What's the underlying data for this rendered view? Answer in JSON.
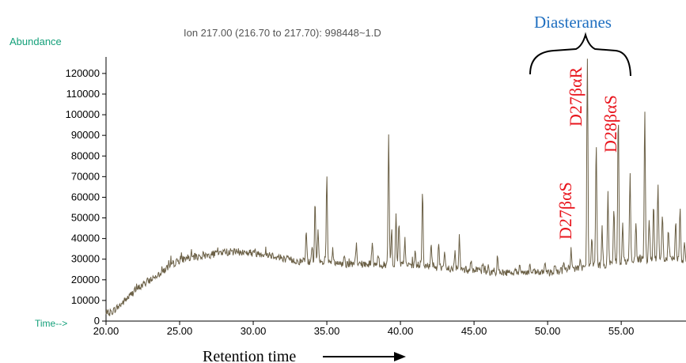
{
  "colors": {
    "trace": "#6b6046",
    "axis": "#000000",
    "teal": "#14a07a",
    "peak_label": "#e8141c",
    "group_label": "#1f6fc0",
    "text": "#000000"
  },
  "chart_data": {
    "type": "line",
    "title": "Ion 217.00 (216.70 to 217.70): 998448~1.D",
    "ylabel": "Abundance",
    "xlabel_prefix": "Time-->",
    "xlabel_bottom": "Retention time",
    "xlim": [
      20.0,
      59.4
    ],
    "ylim": [
      0,
      128000
    ],
    "x_ticks": [
      "20.00",
      "25.00",
      "30.00",
      "35.00",
      "40.00",
      "45.00",
      "50.00",
      "55.00"
    ],
    "x_tick_values": [
      20,
      25,
      30,
      35,
      40,
      45,
      50,
      55
    ],
    "y_ticks": [
      "0",
      "10000",
      "20000",
      "30000",
      "40000",
      "50000",
      "60000",
      "70000",
      "80000",
      "90000",
      "100000",
      "110000",
      "120000"
    ],
    "y_tick_values": [
      0,
      10000,
      20000,
      30000,
      40000,
      50000,
      60000,
      70000,
      80000,
      90000,
      100000,
      110000,
      120000
    ],
    "grid": false,
    "baseline": [
      [
        20.0,
        3000
      ],
      [
        20.5,
        5000
      ],
      [
        21.0,
        8000
      ],
      [
        21.5,
        11500
      ],
      [
        22.0,
        15000
      ],
      [
        22.5,
        17500
      ],
      [
        23.0,
        20000
      ],
      [
        23.5,
        22500
      ],
      [
        24.0,
        25000
      ],
      [
        24.5,
        27500
      ],
      [
        25.0,
        29500
      ],
      [
        25.5,
        30500
      ],
      [
        26.0,
        31000
      ],
      [
        27.0,
        32000
      ],
      [
        28.0,
        33500
      ],
      [
        29.0,
        33500
      ],
      [
        30.0,
        33000
      ],
      [
        31.0,
        32500
      ],
      [
        32.0,
        30500
      ],
      [
        33.0,
        29000
      ],
      [
        34.0,
        28500
      ],
      [
        35.0,
        28000
      ],
      [
        36.0,
        27500
      ],
      [
        37.0,
        27500
      ],
      [
        38.0,
        27500
      ],
      [
        39.0,
        27000
      ],
      [
        40.0,
        27000
      ],
      [
        41.0,
        26500
      ],
      [
        42.0,
        26500
      ],
      [
        43.0,
        25500
      ],
      [
        44.0,
        25000
      ],
      [
        45.0,
        24500
      ],
      [
        46.0,
        24000
      ],
      [
        47.0,
        23500
      ],
      [
        48.0,
        23500
      ],
      [
        49.0,
        23500
      ],
      [
        50.0,
        23500
      ],
      [
        51.0,
        24500
      ],
      [
        52.0,
        25500
      ],
      [
        53.0,
        26500
      ],
      [
        54.0,
        27500
      ],
      [
        55.0,
        28500
      ],
      [
        56.0,
        29500
      ],
      [
        57.0,
        30000
      ],
      [
        58.0,
        30000
      ],
      [
        59.0,
        29500
      ],
      [
        59.4,
        27500
      ]
    ],
    "peaks": [
      [
        33.6,
        43000
      ],
      [
        34.0,
        37000
      ],
      [
        34.2,
        57000
      ],
      [
        34.4,
        43000
      ],
      [
        35.0,
        70000
      ],
      [
        35.4,
        35000
      ],
      [
        36.2,
        33000
      ],
      [
        37.0,
        36000
      ],
      [
        38.1,
        38000
      ],
      [
        38.5,
        33000
      ],
      [
        39.2,
        91000
      ],
      [
        39.4,
        44000
      ],
      [
        39.7,
        52000
      ],
      [
        39.9,
        48000
      ],
      [
        40.3,
        40000
      ],
      [
        41.0,
        34000
      ],
      [
        41.5,
        63000
      ],
      [
        42.1,
        36000
      ],
      [
        42.6,
        38000
      ],
      [
        43.0,
        32000
      ],
      [
        43.7,
        34000
      ],
      [
        44.0,
        41000
      ],
      [
        44.8,
        30000
      ],
      [
        45.6,
        28500
      ],
      [
        46.6,
        31000
      ],
      [
        48.1,
        29000
      ],
      [
        48.8,
        27000
      ],
      [
        49.8,
        28000
      ],
      [
        50.5,
        29000
      ],
      [
        51.1,
        30000
      ],
      [
        51.6,
        33500
      ],
      [
        52.2,
        30000
      ],
      [
        52.7,
        126000
      ],
      [
        53.0,
        40000
      ],
      [
        53.3,
        86000
      ],
      [
        53.7,
        45000
      ],
      [
        54.1,
        62000
      ],
      [
        54.5,
        55000
      ],
      [
        54.8,
        102000
      ],
      [
        55.1,
        48000
      ],
      [
        55.6,
        70000
      ],
      [
        56.0,
        48000
      ],
      [
        56.6,
        101000
      ],
      [
        56.9,
        50000
      ],
      [
        57.2,
        56000
      ],
      [
        57.5,
        67000
      ],
      [
        57.8,
        52000
      ],
      [
        58.2,
        43000
      ],
      [
        58.7,
        48000
      ],
      [
        59.0,
        55000
      ],
      [
        59.3,
        40000
      ]
    ],
    "annotations": {
      "group_label": "Diasteranes",
      "peak_labels": [
        {
          "text": "D27βαS",
          "x": 51.6,
          "y": 40000
        },
        {
          "text": "D27βαR",
          "x": 52.7,
          "y": 112000
        },
        {
          "text": "D28βαS",
          "x": 54.8,
          "y": 90000
        }
      ]
    }
  }
}
